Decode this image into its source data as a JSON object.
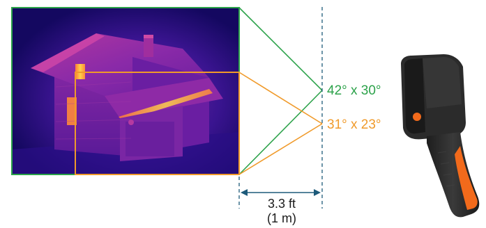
{
  "colors": {
    "wide_fov": "#2ca24a",
    "narrow_fov": "#f09a2a",
    "dimension": "#1d5a7a",
    "thermal_dark": "#190a70",
    "thermal_mid": "#c03a9c",
    "thermal_hot": "#ffd24a",
    "camera_body": "#2b2b2b",
    "camera_accent": "#f26a1b"
  },
  "fov_labels": {
    "wide": "42° x 30°",
    "narrow": "31° x 23°"
  },
  "distance": {
    "line1": "3.3 ft",
    "line2": "(1 m)"
  },
  "icons": {
    "image": "thermal-house-image",
    "device": "thermal-camera-device"
  }
}
